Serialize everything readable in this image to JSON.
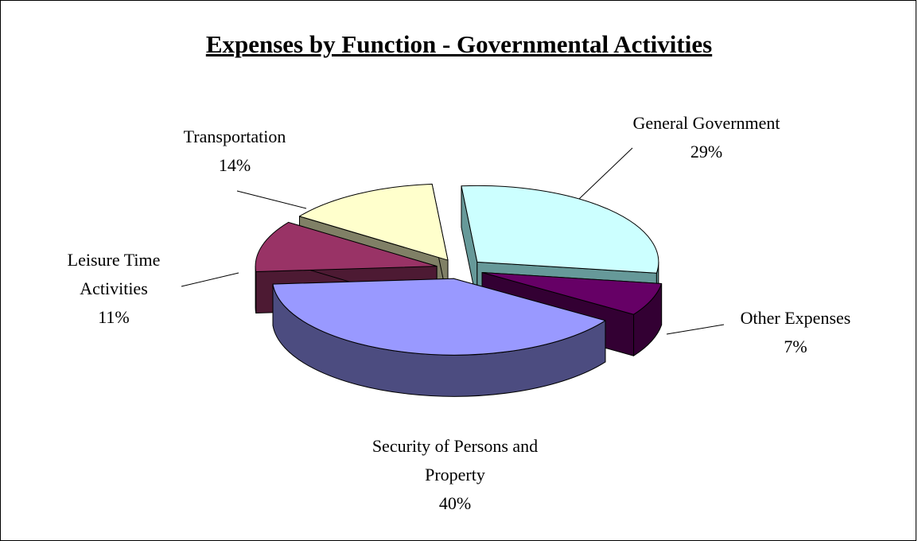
{
  "chart_data": {
    "type": "pie3d",
    "title": "Expenses by Function - Governmental Activities",
    "categories": [
      "General Government",
      "Other Expenses",
      "Security of Persons and Property",
      "Leisure Time Activities",
      "Transportation"
    ],
    "values": [
      29,
      7,
      40,
      11,
      14
    ],
    "value_labels": [
      "29%",
      "7%",
      "40%",
      "11%",
      "14%"
    ],
    "colors": [
      "#ccffff",
      "#660066",
      "#9999ff",
      "#993366",
      "#ffffcc"
    ],
    "side_colors": [
      "#669999",
      "#330033",
      "#4c4c80",
      "#4d1a33",
      "#808066"
    ]
  }
}
